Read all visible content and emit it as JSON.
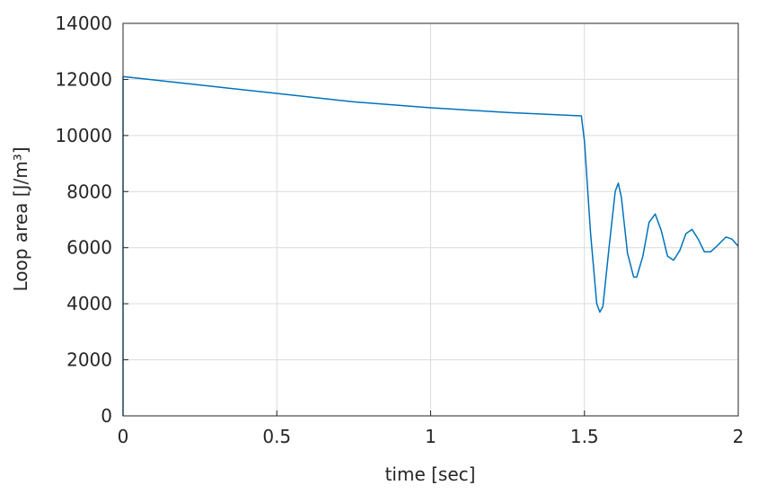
{
  "chart_data": {
    "type": "line",
    "xlabel": "time [sec]",
    "ylabel": "Loop area [J/m³]",
    "x": [
      0,
      0,
      0.25,
      0.5,
      0.75,
      1.0,
      1.25,
      1.49,
      1.5,
      1.52,
      1.54,
      1.55,
      1.56,
      1.58,
      1.6,
      1.61,
      1.62,
      1.64,
      1.66,
      1.67,
      1.69,
      1.71,
      1.73,
      1.75,
      1.77,
      1.79,
      1.81,
      1.83,
      1.85,
      1.87,
      1.89,
      1.91,
      1.93,
      1.96,
      1.98,
      2.0
    ],
    "series": [
      {
        "color": "#0072bd",
        "values": [
          0,
          12100,
          11800,
          11500,
          11200,
          10990,
          10820,
          10700,
          9800,
          6500,
          4000,
          3700,
          3900,
          6000,
          8000,
          8300,
          7800,
          5800,
          4950,
          4950,
          5700,
          6900,
          7200,
          6600,
          5700,
          5550,
          5900,
          6500,
          6650,
          6300,
          5850,
          5850,
          6050,
          6380,
          6300,
          6050
        ]
      }
    ],
    "xlim": [
      0,
      2
    ],
    "xticks": [
      0,
      0.5,
      1,
      1.5,
      2
    ],
    "ylim": [
      0,
      14000
    ],
    "yticks": [
      0,
      2000,
      4000,
      6000,
      8000,
      10000,
      12000,
      14000
    ],
    "grid": true
  }
}
